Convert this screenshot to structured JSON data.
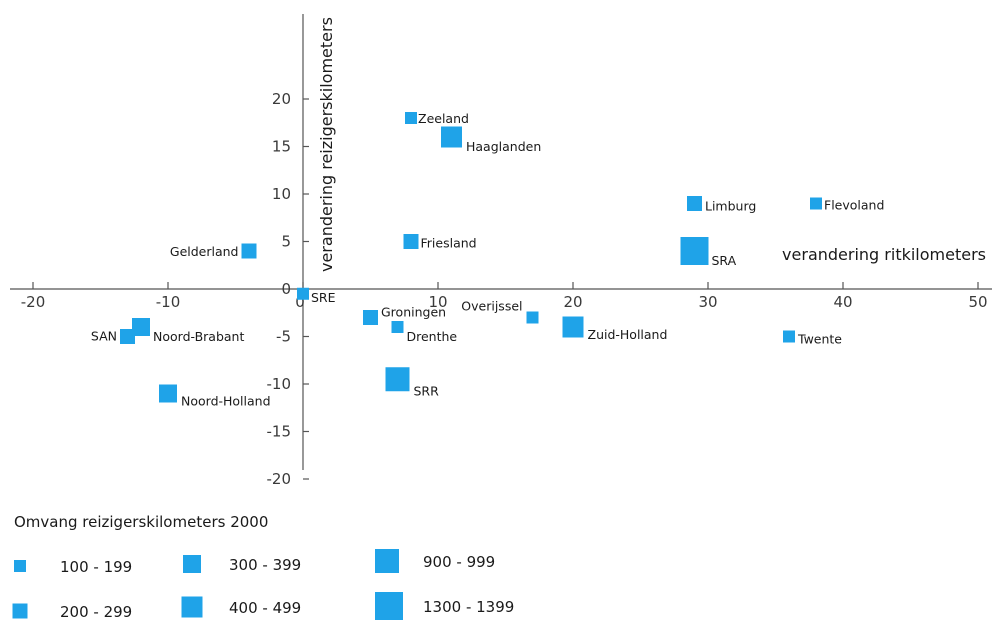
{
  "chart_data": {
    "type": "scatter",
    "xlabel": "verandering ritkilometers",
    "ylabel": "verandering reizigerskilometers",
    "xlim": [
      -22,
      51
    ],
    "ylim": [
      -20,
      29
    ],
    "x_ticks": [
      -20,
      -10,
      0,
      10,
      20,
      30,
      40,
      50
    ],
    "y_ticks": [
      -20,
      -15,
      -10,
      -5,
      0,
      5,
      10,
      15,
      20
    ],
    "grid": false,
    "marker_color": "#1fa3e8",
    "points": [
      {
        "name": "Zeeland",
        "x": 8,
        "y": 18,
        "size_class": "100 - 199"
      },
      {
        "name": "Haaglanden",
        "x": 11,
        "y": 16,
        "size_class": "400 - 499"
      },
      {
        "name": "Limburg",
        "x": 29,
        "y": 9,
        "size_class": "200 - 299"
      },
      {
        "name": "Flevoland",
        "x": 38,
        "y": 9,
        "size_class": "100 - 199"
      },
      {
        "name": "Gelderland",
        "x": -4,
        "y": 4,
        "size_class": "200 - 299"
      },
      {
        "name": "Friesland",
        "x": 8,
        "y": 5,
        "size_class": "200 - 299"
      },
      {
        "name": "SRA",
        "x": 29,
        "y": 4,
        "size_class": "1300 - 1399"
      },
      {
        "name": "SRE",
        "x": 0,
        "y": -0.5,
        "size_class": "100 - 199"
      },
      {
        "name": "Groningen",
        "x": 5,
        "y": -3,
        "size_class": "200 - 299"
      },
      {
        "name": "Overijssel",
        "x": 17,
        "y": -3,
        "size_class": "100 - 199"
      },
      {
        "name": "Drenthe",
        "x": 7,
        "y": -4,
        "size_class": "100 - 199"
      },
      {
        "name": "Zuid-Holland",
        "x": 20,
        "y": -4,
        "size_class": "400 - 499"
      },
      {
        "name": "SAN",
        "x": -13,
        "y": -5,
        "size_class": "200 - 299"
      },
      {
        "name": "Noord-Brabant",
        "x": -12,
        "y": -4,
        "size_class": "300 - 399"
      },
      {
        "name": "Twente",
        "x": 36,
        "y": -5,
        "size_class": "100 - 199"
      },
      {
        "name": "Noord-Holland",
        "x": -10,
        "y": -11,
        "size_class": "300 - 399"
      },
      {
        "name": "SRR",
        "x": 7,
        "y": -9.5,
        "size_class": "900 - 999"
      }
    ],
    "legend": {
      "title": "Omvang reizigerskilometers 2000",
      "placement": "bottom-left",
      "items": [
        "100 - 199",
        "200 - 299",
        "300 - 399",
        "400 - 499",
        "900 - 999",
        "1300 - 1399"
      ]
    }
  }
}
